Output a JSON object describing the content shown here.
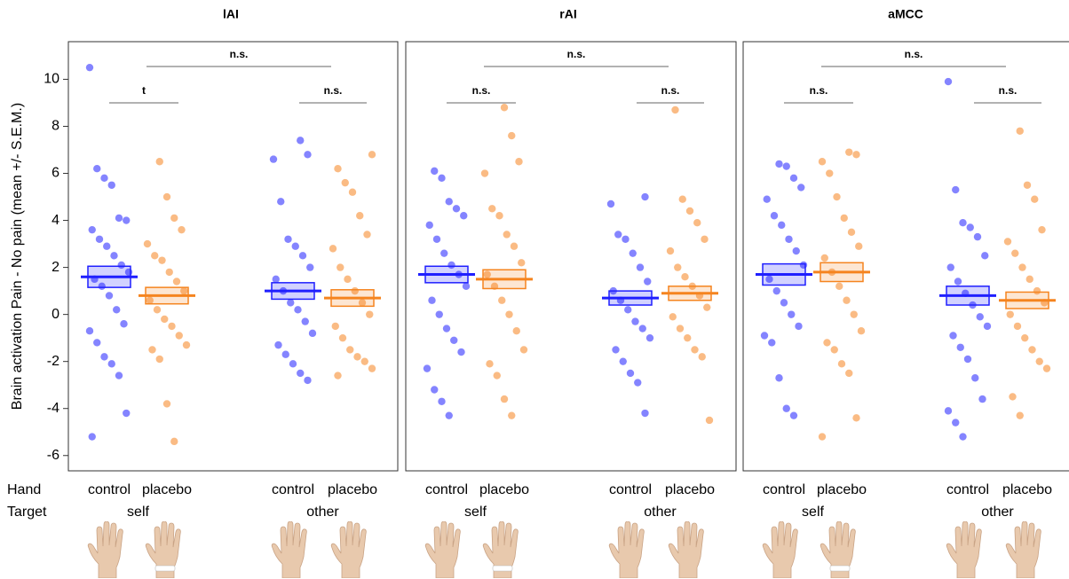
{
  "chart_data": [
    {
      "type": "strip",
      "title": "lAI",
      "ylabel": "Brain activation Pain - No pain (mean +/- S.E.M.)",
      "hand_label": "Hand",
      "target_label": "Target",
      "ylim": [
        -6.65,
        11.6
      ],
      "yticks": [
        -6,
        -4,
        -2,
        0,
        2,
        4,
        6,
        8,
        10
      ],
      "comparisons": [
        "t",
        "n.s.",
        "n.s."
      ],
      "targets": [
        {
          "name": "self",
          "hands": [
            {
              "name": "control",
              "color": "#1f1fff",
              "mean": 1.6,
              "sem": 0.45,
              "values": [
                10.5,
                6.2,
                5.8,
                5.5,
                4.1,
                4.0,
                3.6,
                3.2,
                2.9,
                2.5,
                2.1,
                1.8,
                1.5,
                1.2,
                0.8,
                0.2,
                -0.4,
                -0.7,
                -1.2,
                -1.8,
                -2.1,
                -2.6,
                -4.2,
                -5.2
              ]
            },
            {
              "name": "placebo",
              "color": "#f5841f",
              "mean": 0.8,
              "sem": 0.35,
              "values": [
                6.5,
                5.0,
                4.1,
                3.6,
                3.0,
                2.5,
                2.3,
                1.8,
                1.4,
                1.0,
                0.6,
                0.2,
                -0.2,
                -0.5,
                -0.9,
                -1.3,
                -1.5,
                -1.9,
                -3.8,
                -5.4
              ]
            }
          ]
        },
        {
          "name": "other",
          "hands": [
            {
              "name": "control",
              "color": "#1f1fff",
              "mean": 1.0,
              "sem": 0.35,
              "values": [
                7.4,
                6.8,
                6.6,
                4.8,
                3.2,
                2.9,
                2.5,
                2.0,
                1.5,
                1.0,
                0.5,
                0.2,
                -0.3,
                -0.8,
                -1.3,
                -1.7,
                -2.1,
                -2.5,
                -2.8
              ]
            },
            {
              "name": "placebo",
              "color": "#f5841f",
              "mean": 0.7,
              "sem": 0.35,
              "values": [
                6.8,
                6.2,
                5.6,
                5.2,
                4.2,
                3.4,
                2.8,
                2.0,
                1.5,
                1.0,
                0.5,
                0.0,
                -0.5,
                -1.0,
                -1.5,
                -1.8,
                -2.0,
                -2.3,
                -2.6
              ]
            }
          ]
        }
      ]
    },
    {
      "type": "strip",
      "title": "rAI",
      "ylim": [
        -6.65,
        11.6
      ],
      "comparisons": [
        "n.s.",
        "n.s.",
        "n.s."
      ],
      "targets": [
        {
          "name": "self",
          "hands": [
            {
              "name": "control",
              "color": "#1f1fff",
              "mean": 1.7,
              "sem": 0.35,
              "values": [
                6.1,
                5.8,
                4.8,
                4.5,
                4.2,
                3.8,
                3.2,
                2.6,
                2.1,
                1.7,
                1.2,
                0.6,
                0.0,
                -0.6,
                -1.1,
                -1.6,
                -2.3,
                -3.2,
                -3.7,
                -4.3
              ]
            },
            {
              "name": "placebo",
              "color": "#f5841f",
              "mean": 1.5,
              "sem": 0.4,
              "values": [
                8.8,
                7.6,
                6.5,
                6.0,
                4.5,
                4.2,
                3.4,
                2.9,
                2.2,
                1.7,
                1.2,
                0.6,
                0.0,
                -0.7,
                -1.5,
                -2.1,
                -2.6,
                -3.6,
                -4.3
              ]
            }
          ]
        },
        {
          "name": "other",
          "hands": [
            {
              "name": "control",
              "color": "#1f1fff",
              "mean": 0.7,
              "sem": 0.3,
              "values": [
                5.0,
                4.7,
                3.4,
                3.2,
                2.6,
                2.0,
                1.4,
                1.0,
                0.6,
                0.2,
                -0.3,
                -0.6,
                -1.0,
                -1.5,
                -2.0,
                -2.5,
                -2.9,
                -4.2
              ]
            },
            {
              "name": "placebo",
              "color": "#f5841f",
              "mean": 0.9,
              "sem": 0.3,
              "values": [
                8.7,
                4.9,
                4.4,
                3.9,
                3.2,
                2.7,
                2.0,
                1.6,
                1.2,
                0.8,
                0.3,
                -0.1,
                -0.6,
                -1.0,
                -1.5,
                -1.8,
                -4.5
              ]
            }
          ]
        }
      ]
    },
    {
      "type": "strip",
      "title": "aMCC",
      "ylim": [
        -6.65,
        11.6
      ],
      "comparisons": [
        "n.s.",
        "n.s.",
        "n.s."
      ],
      "targets": [
        {
          "name": "self",
          "hands": [
            {
              "name": "control",
              "color": "#1f1fff",
              "mean": 1.7,
              "sem": 0.45,
              "values": [
                6.4,
                6.3,
                5.8,
                5.4,
                4.9,
                4.2,
                3.8,
                3.2,
                2.7,
                2.1,
                1.5,
                1.0,
                0.5,
                0.0,
                -0.5,
                -0.9,
                -1.2,
                -2.7,
                -4.0,
                -4.3
              ]
            },
            {
              "name": "placebo",
              "color": "#f5841f",
              "mean": 1.8,
              "sem": 0.4,
              "values": [
                6.9,
                6.8,
                6.5,
                6.0,
                5.0,
                4.1,
                3.5,
                2.9,
                2.4,
                1.8,
                1.2,
                0.6,
                0.0,
                -0.7,
                -1.2,
                -1.5,
                -2.1,
                -2.5,
                -4.4,
                -5.2
              ]
            }
          ]
        },
        {
          "name": "other",
          "hands": [
            {
              "name": "control",
              "color": "#1f1fff",
              "mean": 0.8,
              "sem": 0.4,
              "values": [
                9.9,
                5.3,
                3.9,
                3.7,
                3.3,
                2.5,
                2.0,
                1.4,
                0.9,
                0.4,
                -0.1,
                -0.5,
                -0.9,
                -1.4,
                -1.9,
                -2.7,
                -3.6,
                -4.1,
                -4.6,
                -5.2
              ]
            },
            {
              "name": "placebo",
              "color": "#f5841f",
              "mean": 0.6,
              "sem": 0.35,
              "values": [
                7.8,
                5.5,
                4.9,
                3.6,
                3.1,
                2.6,
                2.0,
                1.5,
                1.0,
                0.5,
                0.0,
                -0.5,
                -1.0,
                -1.5,
                -2.0,
                -2.3,
                -3.5,
                -4.3
              ]
            }
          ]
        }
      ]
    }
  ]
}
